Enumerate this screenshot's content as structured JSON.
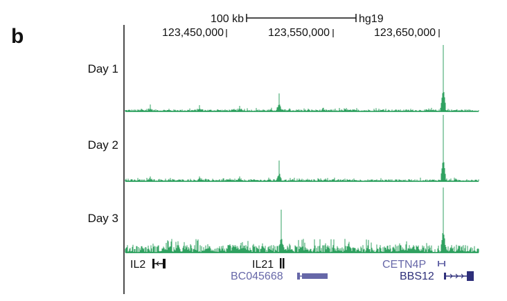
{
  "panel_label": "b",
  "scale": {
    "label": "100 kb",
    "genome": "hg19",
    "span_kb": 100
  },
  "coordinates": [
    "123,450,000",
    "123,550,000",
    "123,650,000"
  ],
  "tracks": [
    {
      "label": "Day 1"
    },
    {
      "label": "Day 2"
    },
    {
      "label": "Day 3"
    }
  ],
  "genes": [
    {
      "name": "IL2"
    },
    {
      "name": "IL21"
    },
    {
      "name": "BC045668"
    },
    {
      "name": "CETN4P"
    },
    {
      "name": "BBS12"
    }
  ],
  "colors": {
    "signal": "#1a9850",
    "gene_dark": "#111111",
    "gene_blue": "#6667a8",
    "gene_navy": "#2e2f7a"
  }
}
